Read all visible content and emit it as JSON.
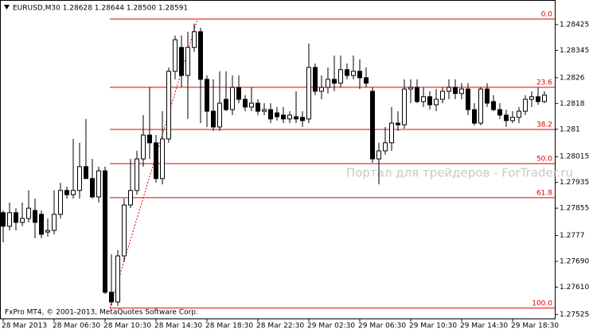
{
  "chart_data": {
    "type": "candlestick",
    "header": "EURUSD,M30  1.28628 1.28644 1.28500 1.28591",
    "watermark": "Портал для трейдеров - ForTrader.ru",
    "footer": "FxPro MT4, © 2001-2013, MetaQuotes Software Corp.",
    "up_color": "#ffffff",
    "down_color": "#000000",
    "line_color": "#000000",
    "ylim": [
      1.27515,
      1.28489
    ],
    "yticks": [
      1.28425,
      1.28345,
      1.2826,
      1.2818,
      1.281,
      1.28015,
      1.27935,
      1.27855,
      1.2777,
      {
        "value": 1.2769,
        "label": "1.27690"
      },
      {
        "value": 1.2761,
        "label": "1.27610"
      },
      1.27525
    ],
    "xticks": [
      {
        "value": 0,
        "label": "28 Mar 2013"
      },
      {
        "value": 8,
        "label": "28 Mar 06:30"
      },
      {
        "value": 16,
        "label": "28 Mar 10:30"
      },
      {
        "value": 24,
        "label": "28 Mar 14:30"
      },
      {
        "value": 32,
        "label": "28 Mar 18:30"
      },
      {
        "value": 40,
        "label": "28 Mar 22:30"
      },
      {
        "value": 48,
        "label": "29 Mar 02:30"
      },
      {
        "value": 56,
        "label": "29 Mar 06:30"
      },
      {
        "value": 64,
        "label": "29 Mar 10:30"
      },
      {
        "value": 72,
        "label": "29 Mar 14:30"
      },
      {
        "value": 80,
        "label": "29 Mar 18:30"
      }
    ],
    "open": [
      1.27841,
      1.27799,
      1.27841,
      1.27811,
      1.27823,
      1.27848,
      1.27836,
      1.27781,
      1.27786,
      1.27836,
      1.2791,
      1.27897,
      1.2791,
      1.27984,
      1.27947,
      1.2789,
      1.27971,
      1.27594,
      1.27564,
      1.27707,
      1.27865,
      1.2791,
      1.28008,
      1.28082,
      1.28058,
      1.27947,
      1.2807,
      1.2828,
      1.28354,
      1.28267,
      1.28354,
      1.28403,
      1.28255,
      1.28156,
      1.28107,
      1.28193,
      1.28161,
      1.2823,
      1.28193,
      1.28169,
      1.28181,
      1.28156,
      1.28161,
      1.28151,
      1.28144,
      1.28132,
      1.28139,
      1.28137,
      1.28132,
      1.28292,
      1.28218,
      1.2823,
      1.28255,
      1.28243,
      1.28285,
      1.28267,
      1.2828,
      1.2826,
      1.28218,
      1.28008,
      1.28033,
      1.28058,
      1.28119,
      1.28114,
      1.28225,
      1.2823,
      1.28186,
      1.28201,
      1.28176,
      1.28193,
      1.28218,
      1.2823,
      1.28211,
      1.28225,
      1.28161,
      1.28119,
      1.28225,
      1.28186,
      1.28161,
      1.28144,
      1.28127,
      1.28137,
      1.28156,
      1.28193,
      1.28201,
      1.28186
    ],
    "high": [
      1.27848,
      1.27873,
      1.27855,
      1.27873,
      1.2791,
      1.27885,
      1.27848,
      1.27823,
      1.2791,
      1.27934,
      1.27922,
      1.2807,
      1.28058,
      1.28132,
      1.28008,
      1.27984,
      1.27984,
      1.27712,
      1.27725,
      1.27885,
      1.28008,
      1.28033,
      1.28144,
      1.2823,
      1.28082,
      1.28156,
      1.28292,
      1.28391,
      1.28391,
      1.28403,
      1.28428,
      1.28415,
      1.28267,
      1.28255,
      1.2828,
      1.2828,
      1.28267,
      1.28267,
      1.28206,
      1.2823,
      1.28193,
      1.28181,
      1.28181,
      1.28169,
      1.28169,
      1.28156,
      1.28218,
      1.28156,
      1.28366,
      1.28304,
      1.28267,
      1.28292,
      1.28329,
      1.28329,
      1.28304,
      1.28329,
      1.28317,
      1.28292,
      1.2823,
      1.28058,
      1.28107,
      1.28169,
      1.28156,
      1.28255,
      1.28255,
      1.28255,
      1.2823,
      1.28218,
      1.28225,
      1.2823,
      1.28255,
      1.28255,
      1.28243,
      1.28243,
      1.28181,
      1.2823,
      1.28243,
      1.28206,
      1.28181,
      1.28161,
      1.28156,
      1.28169,
      1.28206,
      1.28218,
      1.2823,
      1.28218
    ],
    "low": [
      1.27749,
      1.27786,
      1.27786,
      1.27799,
      1.27811,
      1.27762,
      1.27762,
      1.27767,
      1.27774,
      1.27823,
      1.27885,
      1.27885,
      1.27885,
      1.27947,
      1.27885,
      1.27873,
      1.27589,
      1.27552,
      1.27552,
      1.27688,
      1.27855,
      1.27897,
      1.27984,
      1.28008,
      1.27934,
      1.27929,
      1.28058,
      1.28255,
      1.2823,
      1.28132,
      1.28341,
      1.28119,
      1.28107,
      1.28095,
      1.28095,
      1.28156,
      1.28144,
      1.28181,
      1.28156,
      1.28156,
      1.28144,
      1.28144,
      1.28119,
      1.28127,
      1.28119,
      1.28119,
      1.28119,
      1.28107,
      1.28119,
      1.28206,
      1.28193,
      1.28211,
      1.28218,
      1.2823,
      1.28255,
      1.28255,
      1.28225,
      1.2823,
      1.27996,
      1.27929,
      1.28021,
      1.28033,
      1.28095,
      1.28102,
      1.28181,
      1.28181,
      1.28169,
      1.28161,
      1.28156,
      1.28181,
      1.28193,
      1.28193,
      1.28193,
      1.28144,
      1.28112,
      1.28112,
      1.28169,
      1.28156,
      1.28132,
      1.28107,
      1.28119,
      1.28119,
      1.28144,
      1.28169,
      1.28176,
      1.28181
    ],
    "close": [
      1.27799,
      1.27841,
      1.27811,
      1.27823,
      1.27855,
      1.27811,
      1.27774,
      1.27786,
      1.27836,
      1.2791,
      1.27897,
      1.2791,
      1.27984,
      1.27947,
      1.2789,
      1.27971,
      1.27594,
      1.27564,
      1.27707,
      1.27865,
      1.2791,
      1.28008,
      1.28082,
      1.28058,
      1.27947,
      1.2807,
      1.2828,
      1.28378,
      1.28267,
      1.28354,
      1.28403,
      1.28255,
      1.28156,
      1.28107,
      1.28181,
      1.28161,
      1.2823,
      1.28193,
      1.28169,
      1.28181,
      1.28156,
      1.28161,
      1.28132,
      1.28139,
      1.28132,
      1.28144,
      1.28132,
      1.28127,
      1.28292,
      1.28218,
      1.2823,
      1.28255,
      1.28243,
      1.28285,
      1.28267,
      1.2828,
      1.2826,
      1.28243,
      1.28008,
      1.28033,
      1.28058,
      1.28119,
      1.28114,
      1.28225,
      1.2823,
      1.28186,
      1.28201,
      1.28176,
      1.28193,
      1.28218,
      1.2823,
      1.28211,
      1.28225,
      1.28161,
      1.28119,
      1.28225,
      1.28181,
      1.28161,
      1.28144,
      1.28127,
      1.28137,
      1.28156,
      1.28193,
      1.28201,
      1.28186,
      1.28206
    ],
    "fibonacci": {
      "high": 1.28442,
      "low": 1.27545,
      "color": "#e00000",
      "levels": [
        {
          "value": 0,
          "label": "0.0"
        },
        23.6,
        38.2,
        {
          "value": 50,
          "label": "50.0"
        },
        61.8,
        {
          "value": 100,
          "label": "100.0"
        }
      ]
    }
  }
}
